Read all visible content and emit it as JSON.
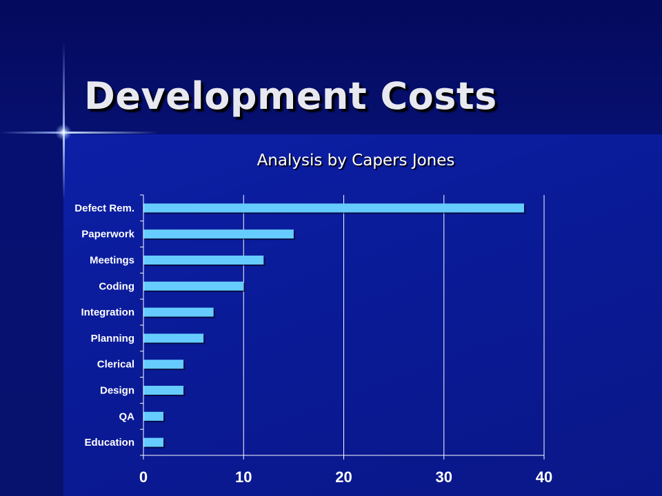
{
  "slide": {
    "title": "Development Costs",
    "subtitle": "Analysis by Capers Jones"
  },
  "colors": {
    "bar_fill": "#66ccff",
    "text": "#ffffff",
    "title_text": "#e8e8f0",
    "background": "#0c1fa6"
  },
  "chart_data": {
    "type": "bar",
    "orientation": "horizontal",
    "title": "Analysis by Capers Jones",
    "categories": [
      "Defect Rem.",
      "Paperwork",
      "Meetings",
      "Coding",
      "Integration",
      "Planning",
      "Clerical",
      "Design",
      "QA",
      "Education"
    ],
    "values": [
      38,
      15,
      12,
      10,
      7,
      6,
      4,
      4,
      2,
      2
    ],
    "xlim": [
      0,
      40
    ],
    "xticks": [
      0,
      10,
      20,
      30,
      40
    ],
    "xlabel": "",
    "ylabel": "",
    "grid": "vertical",
    "legend": "none"
  }
}
